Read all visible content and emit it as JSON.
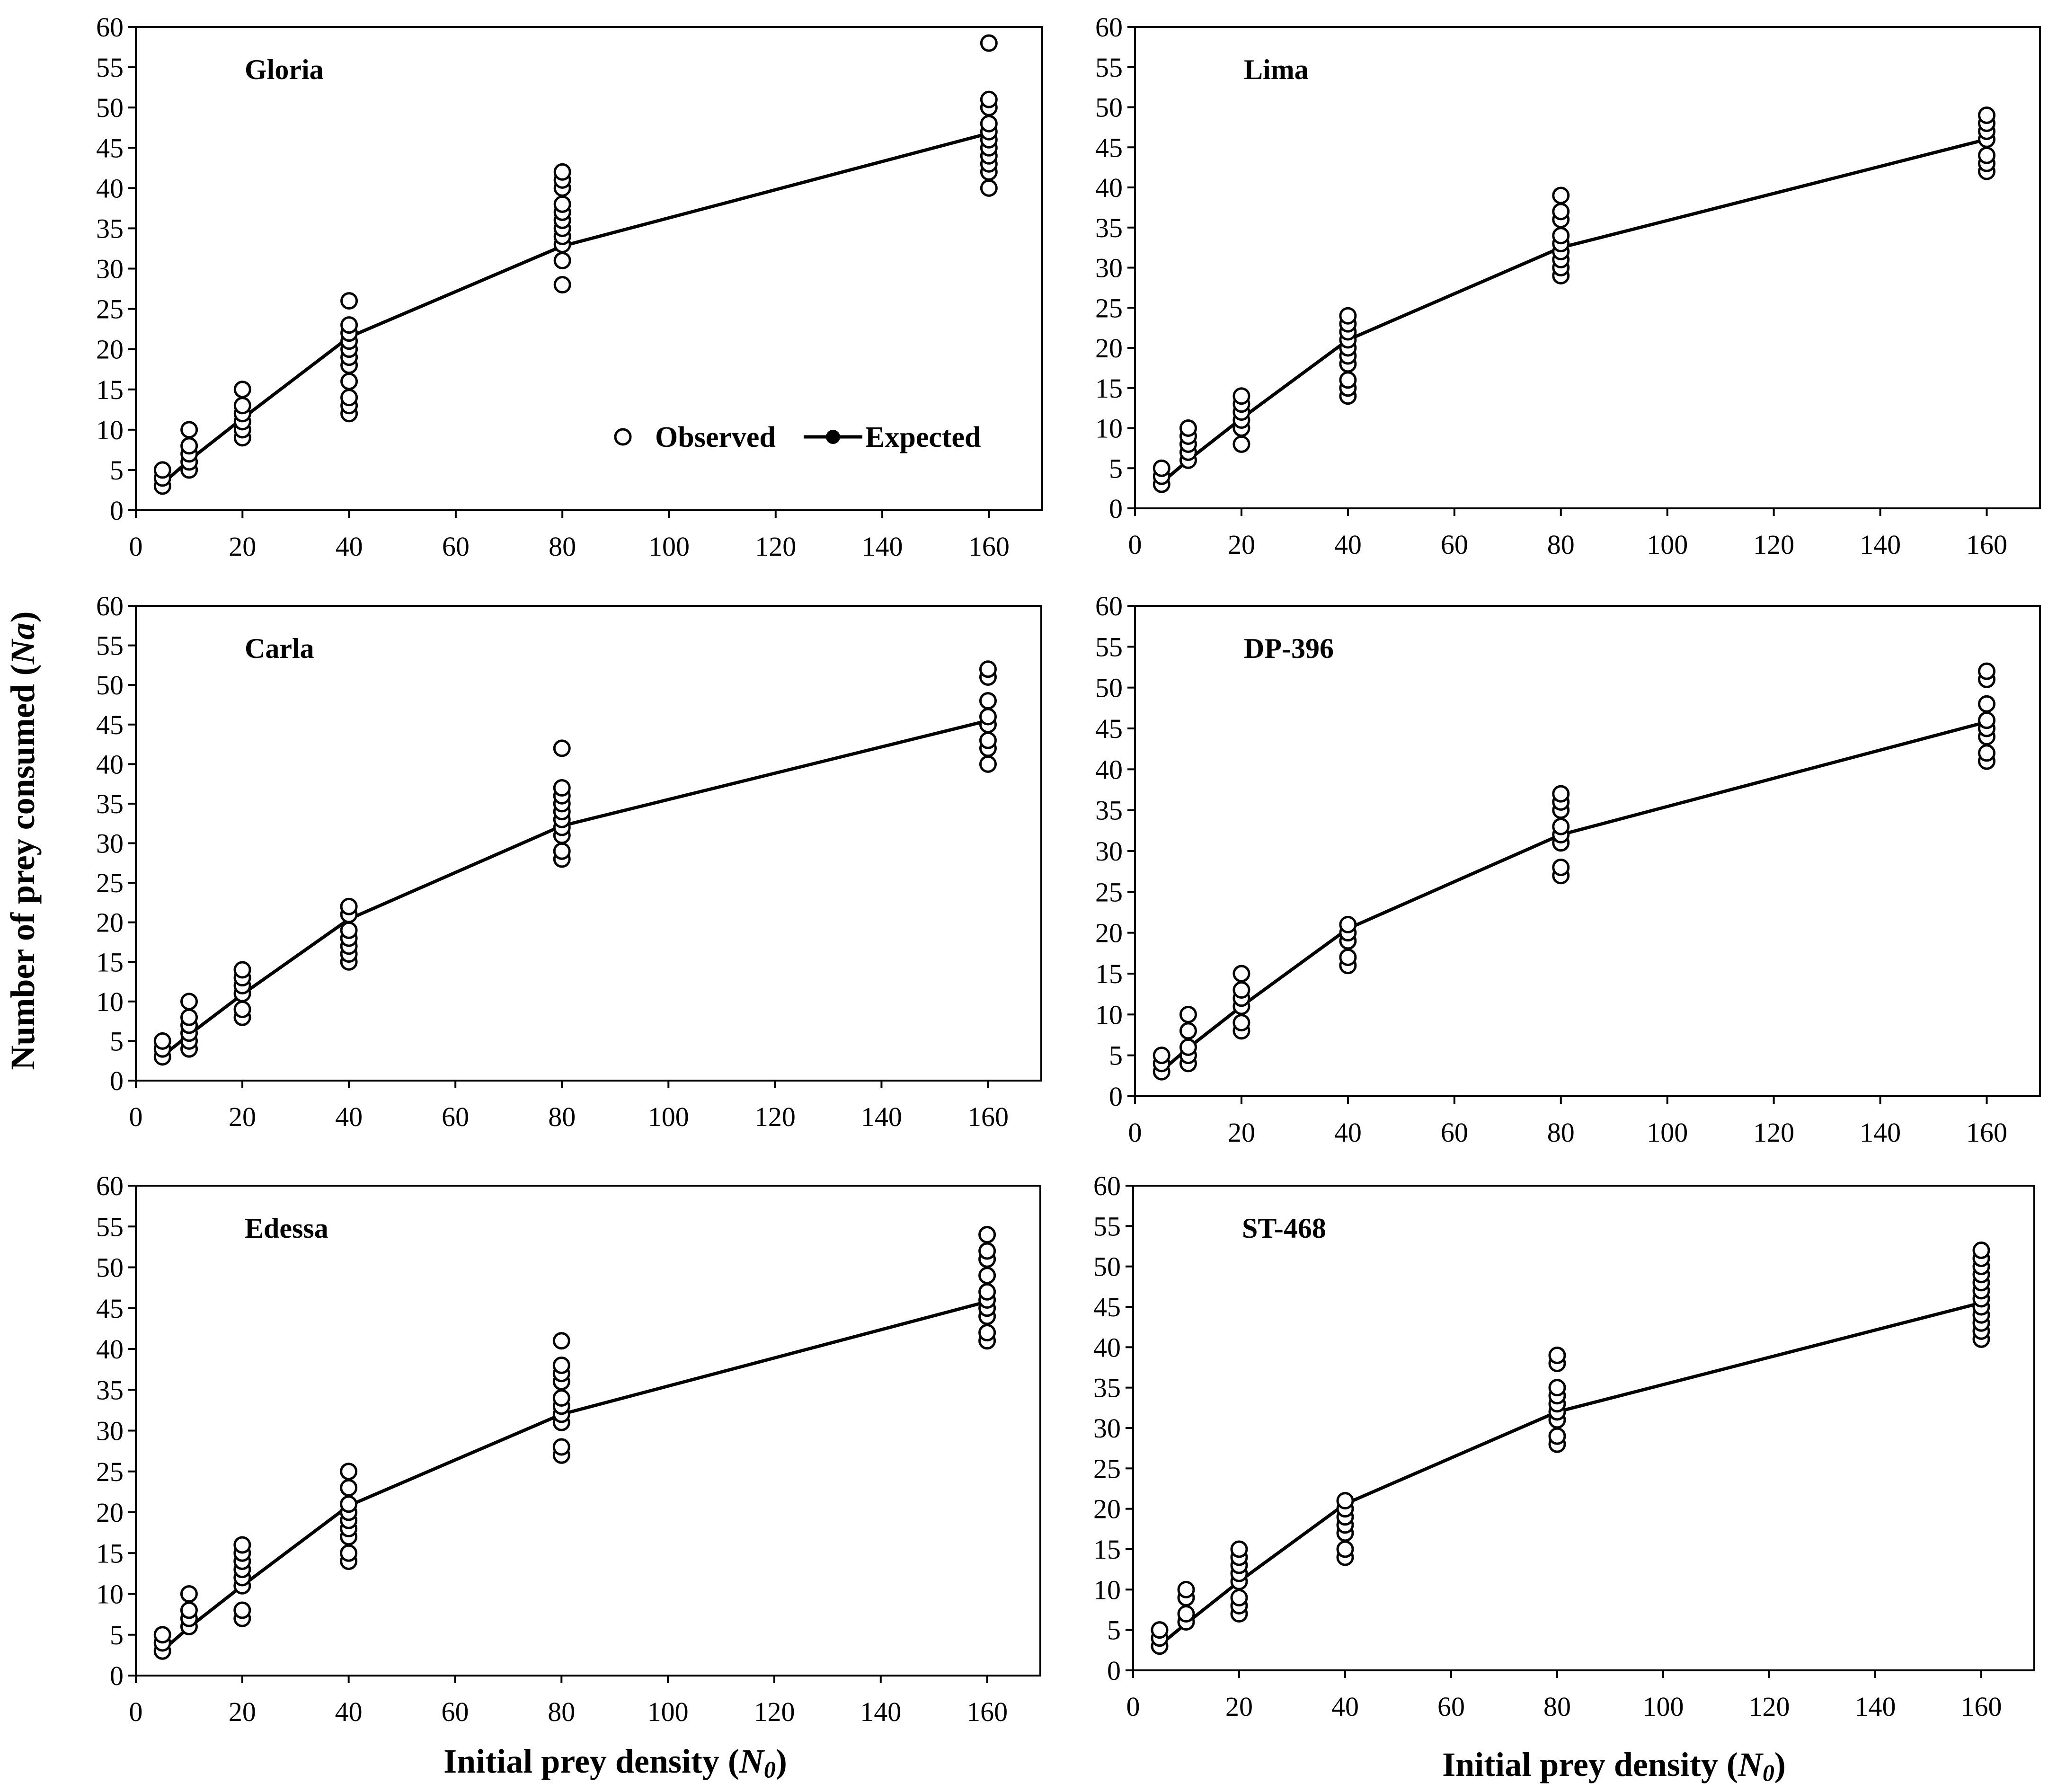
{
  "figure": {
    "ylabel_main": "Number of prey consumed (",
    "ylabel_sym": "Na",
    "ylabel_close": ")",
    "xlabel_main": "Initial prey density (",
    "xlabel_sym": "N",
    "xlabel_sub": "0",
    "xlabel_close": ")"
  },
  "legend": {
    "observed": "Observed",
    "expected": "Expected"
  },
  "axes": {
    "xlim": [
      0,
      170
    ],
    "ylim": [
      0,
      60
    ],
    "xticks": [
      0,
      20,
      40,
      60,
      80,
      100,
      120,
      140,
      160
    ],
    "yticks": [
      0,
      5,
      10,
      15,
      20,
      25,
      30,
      35,
      40,
      45,
      50,
      55,
      60
    ]
  },
  "chart_data": [
    {
      "type": "scatter",
      "title": "Gloria",
      "expected": {
        "x": [
          5,
          10,
          20,
          40,
          80,
          160
        ],
        "y": [
          3.3,
          6.2,
          11.4,
          21.5,
          32.8,
          46.8
        ]
      },
      "observed": [
        {
          "x": 5,
          "y": [
            3,
            4,
            5
          ]
        },
        {
          "x": 10,
          "y": [
            5,
            6,
            7,
            8,
            10
          ]
        },
        {
          "x": 20,
          "y": [
            9,
            10,
            11,
            12,
            13,
            15
          ]
        },
        {
          "x": 40,
          "y": [
            12,
            13,
            14,
            16,
            18,
            19,
            20,
            21,
            22,
            23,
            26
          ]
        },
        {
          "x": 80,
          "y": [
            28,
            31,
            33,
            34,
            35,
            36,
            37,
            38,
            40,
            41,
            42
          ]
        },
        {
          "x": 160,
          "y": [
            40,
            42,
            43,
            44,
            45,
            46,
            47,
            48,
            50,
            51,
            58
          ]
        }
      ]
    },
    {
      "type": "scatter",
      "title": "Lima",
      "expected": {
        "x": [
          5,
          10,
          20,
          40,
          80,
          160
        ],
        "y": [
          3.2,
          6.0,
          11.2,
          21.0,
          32.5,
          46.0
        ]
      },
      "observed": [
        {
          "x": 5,
          "y": [
            3,
            4,
            5
          ]
        },
        {
          "x": 10,
          "y": [
            6,
            7,
            8,
            9,
            10
          ]
        },
        {
          "x": 20,
          "y": [
            8,
            10,
            11,
            12,
            13,
            14
          ]
        },
        {
          "x": 40,
          "y": [
            14,
            15,
            16,
            18,
            19,
            20,
            21,
            22,
            23,
            24
          ]
        },
        {
          "x": 80,
          "y": [
            29,
            30,
            31,
            32,
            33,
            34,
            36,
            37,
            39
          ]
        },
        {
          "x": 160,
          "y": [
            42,
            43,
            44,
            46,
            47,
            48,
            49
          ]
        }
      ]
    },
    {
      "type": "scatter",
      "title": "Carla",
      "expected": {
        "x": [
          5,
          10,
          20,
          40,
          80,
          160
        ],
        "y": [
          3.1,
          5.8,
          10.9,
          20.4,
          32.2,
          45.5
        ]
      },
      "observed": [
        {
          "x": 5,
          "y": [
            3,
            4,
            5
          ]
        },
        {
          "x": 10,
          "y": [
            4,
            5,
            6,
            7,
            8,
            10
          ]
        },
        {
          "x": 20,
          "y": [
            8,
            9,
            11,
            12,
            13,
            14
          ]
        },
        {
          "x": 40,
          "y": [
            15,
            16,
            17,
            18,
            19,
            21,
            22
          ]
        },
        {
          "x": 80,
          "y": [
            28,
            29,
            31,
            32,
            33,
            34,
            35,
            36,
            37,
            42
          ]
        },
        {
          "x": 160,
          "y": [
            40,
            42,
            43,
            45,
            46,
            48,
            51,
            52
          ]
        }
      ]
    },
    {
      "type": "scatter",
      "title": "DP-396",
      "expected": {
        "x": [
          5,
          10,
          20,
          40,
          80,
          160
        ],
        "y": [
          3.1,
          5.9,
          11.0,
          20.5,
          32.0,
          45.8
        ]
      },
      "observed": [
        {
          "x": 5,
          "y": [
            3,
            4,
            5
          ]
        },
        {
          "x": 10,
          "y": [
            4,
            5,
            6,
            8,
            10
          ]
        },
        {
          "x": 20,
          "y": [
            8,
            9,
            11,
            12,
            13,
            15
          ]
        },
        {
          "x": 40,
          "y": [
            16,
            17,
            19,
            20,
            21
          ]
        },
        {
          "x": 80,
          "y": [
            27,
            28,
            31,
            32,
            33,
            35,
            36,
            37
          ]
        },
        {
          "x": 160,
          "y": [
            41,
            42,
            44,
            45,
            46,
            48,
            51,
            52
          ]
        }
      ]
    },
    {
      "type": "scatter",
      "title": "Edessa",
      "expected": {
        "x": [
          5,
          10,
          20,
          40,
          80,
          160
        ],
        "y": [
          3.1,
          5.9,
          11.0,
          20.8,
          32.0,
          45.8
        ]
      },
      "observed": [
        {
          "x": 5,
          "y": [
            3,
            4,
            5
          ]
        },
        {
          "x": 10,
          "y": [
            6,
            7,
            8,
            10
          ]
        },
        {
          "x": 20,
          "y": [
            7,
            8,
            11,
            12,
            13,
            14,
            15,
            16
          ]
        },
        {
          "x": 40,
          "y": [
            14,
            15,
            17,
            18,
            19,
            20,
            21,
            23,
            25
          ]
        },
        {
          "x": 80,
          "y": [
            27,
            28,
            31,
            32,
            33,
            34,
            36,
            37,
            38,
            41
          ]
        },
        {
          "x": 160,
          "y": [
            41,
            42,
            44,
            45,
            46,
            47,
            49,
            51,
            52,
            54
          ]
        }
      ]
    },
    {
      "type": "scatter",
      "title": "ST-468",
      "expected": {
        "x": [
          5,
          10,
          20,
          40,
          80,
          160
        ],
        "y": [
          3.1,
          5.8,
          11.0,
          20.6,
          32.0,
          45.5
        ]
      },
      "observed": [
        {
          "x": 5,
          "y": [
            3,
            4,
            5
          ]
        },
        {
          "x": 10,
          "y": [
            6,
            7,
            9,
            10
          ]
        },
        {
          "x": 20,
          "y": [
            7,
            8,
            9,
            11,
            12,
            13,
            14,
            15
          ]
        },
        {
          "x": 40,
          "y": [
            14,
            15,
            17,
            18,
            19,
            20,
            21
          ]
        },
        {
          "x": 80,
          "y": [
            28,
            29,
            31,
            32,
            33,
            34,
            35,
            38,
            39
          ]
        },
        {
          "x": 160,
          "y": [
            41,
            42,
            43,
            44,
            45,
            46,
            47,
            48,
            49,
            50,
            51,
            52
          ]
        }
      ]
    }
  ]
}
